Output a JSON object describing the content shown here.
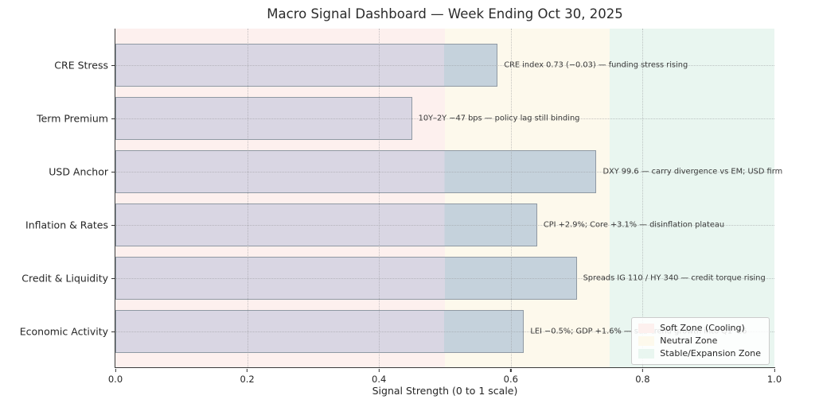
{
  "title": "Macro Signal Dashboard — Week Ending Oct 30, 2025",
  "chart_data": {
    "type": "bar",
    "orientation": "horizontal",
    "title": "Macro Signal Dashboard — Week Ending Oct 30, 2025",
    "xlabel": "Signal Strength (0 to 1 scale)",
    "xlim": [
      0,
      1
    ],
    "xticks": [
      "0.0",
      "0.2",
      "0.4",
      "0.6",
      "0.8",
      "1.0"
    ],
    "grid": "dotted",
    "legend_position": "lower right",
    "neutral_threshold": 0.5,
    "rows": [
      {
        "label": "CRE Stress",
        "value": 0.58,
        "annotation": "CRE index 0.73 (−0.03) — funding stress rising"
      },
      {
        "label": "Term Premium",
        "value": 0.45,
        "annotation": "10Y–2Y −47 bps — policy lag still binding"
      },
      {
        "label": "USD Anchor",
        "value": 0.73,
        "annotation": "DXY 99.6 — carry divergence vs EM; USD firm"
      },
      {
        "label": "Inflation & Rates",
        "value": 0.64,
        "annotation": "CPI +2.9%; Core +3.1% — disinflation plateau"
      },
      {
        "label": "Credit & Liquidity",
        "value": 0.7,
        "annotation": "Spreads IG 110 / HY 340 — credit torque rising"
      },
      {
        "label": "Economic Activity",
        "value": 0.62,
        "annotation": "LEI −0.5%; GDP +1.6% — sub-trend growth into Q1 '26"
      }
    ],
    "zones": [
      {
        "label": "Soft Zone (Cooling)",
        "from": 0.0,
        "to": 0.5,
        "color": "#fdf0ee"
      },
      {
        "label": "Neutral Zone",
        "from": 0.5,
        "to": 0.75,
        "color": "#fdf9ec"
      },
      {
        "label": "Stable/Expansion Zone",
        "from": 0.75,
        "to": 1.0,
        "color": "#e9f6f0"
      }
    ],
    "bar_colors": {
      "below_neutral": "#d9d6e3",
      "above_neutral": "#c5d2dc",
      "border": "#8f99a3"
    }
  }
}
